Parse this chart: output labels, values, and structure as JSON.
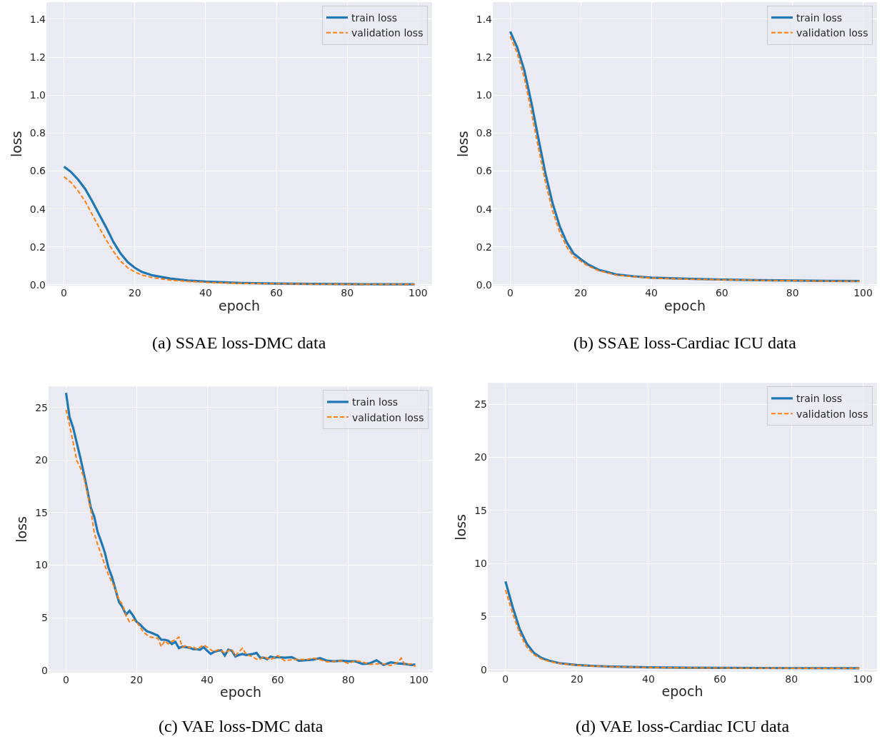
{
  "chart_data": [
    {
      "type": "line",
      "title": "(a) SSAE loss-DMC data",
      "xlabel": "epoch",
      "ylabel": "loss",
      "grid": true,
      "legend": "top right",
      "xlim": [
        -4.95,
        103.95
      ],
      "xticks": [
        0,
        20,
        40,
        60,
        80,
        100
      ],
      "ylim": [
        -0.005,
        1.49
      ],
      "yticks": [
        {
          "value": 0,
          "label": "0.0"
        },
        {
          "value": 0.2,
          "label": "0.2"
        },
        {
          "value": 0.4,
          "label": "0.4"
        },
        {
          "value": 0.6,
          "label": "0.6"
        },
        {
          "value": 0.8,
          "label": "0.8"
        },
        {
          "value": 1.0,
          "label": "1.0"
        },
        {
          "value": 1.2,
          "label": "1.2"
        },
        {
          "value": 1.4,
          "label": "1.4"
        }
      ],
      "series": [
        {
          "name": "train loss",
          "color": "#1f77b4",
          "line_style": "solid",
          "x": [
            0,
            2,
            4,
            6,
            8,
            10,
            12,
            14,
            16,
            18,
            20,
            22,
            25,
            30,
            35,
            40,
            50,
            60,
            70,
            80,
            90,
            99
          ],
          "values": [
            0.623,
            0.595,
            0.555,
            0.505,
            0.44,
            0.37,
            0.3,
            0.225,
            0.165,
            0.12,
            0.09,
            0.068,
            0.05,
            0.033,
            0.023,
            0.017,
            0.01,
            0.007,
            0.005,
            0.004,
            0.003,
            0.003
          ]
        },
        {
          "name": "validation loss",
          "color": "#ff7f0e",
          "line_style": "dashed",
          "x": [
            0,
            2,
            4,
            6,
            8,
            10,
            12,
            14,
            16,
            18,
            20,
            22,
            25,
            30,
            35,
            40,
            50,
            60,
            70,
            80,
            90,
            99
          ],
          "values": [
            0.57,
            0.54,
            0.495,
            0.44,
            0.37,
            0.3,
            0.235,
            0.175,
            0.125,
            0.09,
            0.068,
            0.052,
            0.038,
            0.025,
            0.018,
            0.013,
            0.008,
            0.006,
            0.004,
            0.003,
            0.003,
            0.003
          ]
        }
      ]
    },
    {
      "type": "line",
      "title": "(b) SSAE loss-Cardiac ICU data",
      "xlabel": "epoch",
      "ylabel": "loss",
      "grid": true,
      "legend": "top right",
      "xlim": [
        -4.95,
        103.95
      ],
      "xticks": [
        0,
        20,
        40,
        60,
        80,
        100
      ],
      "ylim": [
        -0.005,
        1.49
      ],
      "yticks": [
        {
          "value": 0,
          "label": "0.0"
        },
        {
          "value": 0.2,
          "label": "0.2"
        },
        {
          "value": 0.4,
          "label": "0.4"
        },
        {
          "value": 0.6,
          "label": "0.6"
        },
        {
          "value": 0.8,
          "label": "0.8"
        },
        {
          "value": 1.0,
          "label": "1.0"
        },
        {
          "value": 1.2,
          "label": "1.2"
        },
        {
          "value": 1.4,
          "label": "1.4"
        }
      ],
      "series": [
        {
          "name": "train loss",
          "color": "#1f77b4",
          "line_style": "solid",
          "x": [
            0,
            2,
            4,
            6,
            8,
            10,
            12,
            14,
            16,
            18,
            20,
            22,
            25,
            30,
            35,
            40,
            50,
            60,
            70,
            80,
            90,
            99
          ],
          "values": [
            1.335,
            1.25,
            1.13,
            0.96,
            0.77,
            0.585,
            0.43,
            0.31,
            0.224,
            0.164,
            0.135,
            0.108,
            0.08,
            0.055,
            0.045,
            0.038,
            0.032,
            0.028,
            0.025,
            0.023,
            0.021,
            0.02
          ]
        },
        {
          "name": "validation loss",
          "color": "#ff7f0e",
          "line_style": "dashed",
          "x": [
            0,
            2,
            4,
            6,
            8,
            10,
            12,
            14,
            16,
            18,
            20,
            22,
            25,
            30,
            35,
            40,
            50,
            60,
            70,
            80,
            90,
            99
          ],
          "values": [
            1.31,
            1.22,
            1.09,
            0.91,
            0.72,
            0.54,
            0.39,
            0.28,
            0.2,
            0.148,
            0.125,
            0.1,
            0.075,
            0.052,
            0.043,
            0.036,
            0.03,
            0.027,
            0.024,
            0.022,
            0.02,
            0.019
          ]
        }
      ]
    },
    {
      "type": "line",
      "title": "(c) VAE loss-DMC data",
      "xlabel": "epoch",
      "ylabel": "loss",
      "grid": true,
      "legend": "top right",
      "xlim": [
        -4.95,
        103.95
      ],
      "xticks": [
        0,
        20,
        40,
        60,
        80,
        100
      ],
      "ylim": [
        -0.2,
        27
      ],
      "yticks": [
        0,
        5,
        10,
        15,
        20,
        25
      ],
      "series": [
        {
          "name": "train loss",
          "color": "#1f77b4",
          "line_style": "solid",
          "x": [
            0,
            1,
            2,
            3,
            4,
            5,
            6,
            7,
            8,
            9,
            10,
            11,
            12,
            13,
            14,
            15,
            16,
            17,
            18,
            19,
            20,
            21,
            22,
            23,
            24,
            25,
            26,
            27,
            28,
            29,
            30,
            31,
            32,
            33,
            34,
            35,
            36,
            37,
            38,
            39,
            40,
            41,
            42,
            43,
            44,
            45,
            46,
            47,
            48,
            49,
            50,
            51,
            52,
            53,
            54,
            55,
            56,
            57,
            58,
            59,
            60,
            62,
            64,
            66,
            68,
            70,
            72,
            74,
            76,
            78,
            80,
            82,
            84,
            86,
            88,
            90,
            92,
            94,
            96,
            98,
            99
          ],
          "values": [
            26.4,
            24.1,
            23.1,
            21.7,
            20.3,
            18.8,
            17.2,
            15.5,
            14.6,
            13.1,
            12.2,
            11.2,
            9.8,
            8.9,
            7.7,
            6.5,
            6.0,
            5.3,
            5.65,
            5.2,
            4.6,
            4.35,
            4.0,
            3.7,
            3.6,
            3.45,
            3.3,
            2.9,
            2.9,
            2.8,
            2.5,
            2.7,
            2.1,
            2.25,
            2.2,
            2.15,
            2.0,
            2.0,
            1.95,
            2.2,
            1.85,
            1.55,
            1.75,
            1.85,
            1.9,
            1.4,
            1.95,
            1.85,
            1.3,
            1.45,
            1.55,
            1.45,
            1.5,
            1.55,
            1.65,
            1.2,
            1.2,
            1.05,
            1.3,
            1.2,
            1.25,
            1.2,
            1.25,
            0.9,
            0.95,
            1.0,
            1.15,
            0.9,
            0.85,
            0.9,
            0.85,
            0.85,
            0.6,
            0.65,
            0.95,
            0.5,
            0.75,
            0.65,
            0.6,
            0.5,
            0.55
          ]
        },
        {
          "name": "validation loss",
          "color": "#ff7f0e",
          "line_style": "dashed",
          "x": [
            0,
            1,
            2,
            3,
            4,
            5,
            6,
            7,
            8,
            9,
            10,
            11,
            12,
            13,
            14,
            15,
            16,
            17,
            18,
            19,
            20,
            21,
            22,
            23,
            24,
            25,
            26,
            27,
            28,
            29,
            30,
            31,
            32,
            33,
            34,
            35,
            36,
            37,
            38,
            39,
            40,
            41,
            42,
            43,
            44,
            45,
            46,
            47,
            48,
            49,
            50,
            51,
            52,
            53,
            54,
            55,
            56,
            58,
            60,
            62,
            64,
            66,
            68,
            70,
            72,
            74,
            76,
            78,
            80,
            82,
            84,
            86,
            88,
            90,
            92,
            94,
            95,
            96,
            98,
            99
          ],
          "values": [
            24.8,
            23.3,
            21.7,
            20.0,
            19.3,
            18.4,
            16.9,
            15.3,
            13.1,
            11.9,
            11.0,
            10.0,
            9.1,
            8.4,
            7.7,
            6.7,
            6.25,
            5.2,
            4.6,
            4.8,
            4.6,
            4.1,
            3.6,
            3.35,
            3.15,
            3.1,
            3.05,
            2.25,
            2.8,
            2.5,
            2.75,
            2.9,
            3.15,
            2.2,
            2.35,
            2.15,
            2.25,
            2.0,
            2.2,
            2.4,
            2.2,
            1.95,
            1.75,
            1.95,
            1.85,
            1.65,
            1.85,
            2.0,
            1.4,
            1.75,
            2.1,
            1.55,
            1.4,
            1.25,
            1.05,
            1.05,
            1.3,
            1.0,
            1.4,
            0.9,
            1.0,
            1.05,
            1.0,
            1.15,
            1.0,
            0.8,
            0.85,
            0.9,
            0.65,
            0.9,
            0.8,
            0.55,
            0.6,
            0.6,
            0.45,
            0.75,
            1.15,
            0.55,
            0.6,
            0.35
          ]
        }
      ]
    },
    {
      "type": "line",
      "title": "(d) VAE loss-Cardiac ICU data",
      "xlabel": "epoch",
      "ylabel": "loss",
      "grid": true,
      "legend": "top right",
      "xlim": [
        -4.95,
        103.95
      ],
      "xticks": [
        0,
        20,
        40,
        60,
        80,
        100
      ],
      "ylim": [
        -0.2,
        27
      ],
      "yticks": [
        0,
        5,
        10,
        15,
        20,
        25
      ],
      "series": [
        {
          "name": "train loss",
          "color": "#1f77b4",
          "line_style": "solid",
          "x": [
            0,
            2,
            4,
            6,
            8,
            10,
            12,
            15,
            20,
            25,
            30,
            40,
            50,
            60,
            80,
            99
          ],
          "values": [
            8.3,
            5.9,
            3.8,
            2.4,
            1.55,
            1.1,
            0.85,
            0.6,
            0.42,
            0.33,
            0.27,
            0.2,
            0.17,
            0.15,
            0.13,
            0.12
          ]
        },
        {
          "name": "validation loss",
          "color": "#ff7f0e",
          "line_style": "dashed",
          "x": [
            0,
            2,
            4,
            6,
            8,
            10,
            12,
            15,
            20,
            25,
            30,
            40,
            50,
            60,
            80,
            99
          ],
          "values": [
            7.5,
            5.3,
            3.4,
            2.1,
            1.4,
            1.0,
            0.78,
            0.57,
            0.4,
            0.32,
            0.26,
            0.19,
            0.16,
            0.14,
            0.12,
            0.11
          ]
        }
      ]
    }
  ]
}
